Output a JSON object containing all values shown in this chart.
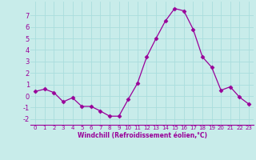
{
  "x": [
    0,
    1,
    2,
    3,
    4,
    5,
    6,
    7,
    8,
    9,
    10,
    11,
    12,
    13,
    14,
    15,
    16,
    17,
    18,
    19,
    20,
    21,
    22,
    23
  ],
  "y": [
    0.4,
    0.6,
    0.3,
    -0.5,
    -0.15,
    -0.9,
    -0.9,
    -1.3,
    -1.75,
    -1.75,
    -0.3,
    1.1,
    3.4,
    5.0,
    6.5,
    7.6,
    7.4,
    5.8,
    3.4,
    2.5,
    0.5,
    0.8,
    -0.1,
    -0.7
  ],
  "line_color": "#990099",
  "marker": "D",
  "marker_size": 2.5,
  "bg_color": "#c8ecea",
  "grid_color": "#aadddd",
  "xlabel": "Windchill (Refroidissement éolien,°C)",
  "xlabel_color": "#990099",
  "tick_color": "#990099",
  "ylim": [
    -2.5,
    8.2
  ],
  "xlim": [
    -0.5,
    23.5
  ],
  "yticks": [
    -2,
    -1,
    0,
    1,
    2,
    3,
    4,
    5,
    6,
    7
  ],
  "xticks": [
    0,
    1,
    2,
    3,
    4,
    5,
    6,
    7,
    8,
    9,
    10,
    11,
    12,
    13,
    14,
    15,
    16,
    17,
    18,
    19,
    20,
    21,
    22,
    23
  ]
}
